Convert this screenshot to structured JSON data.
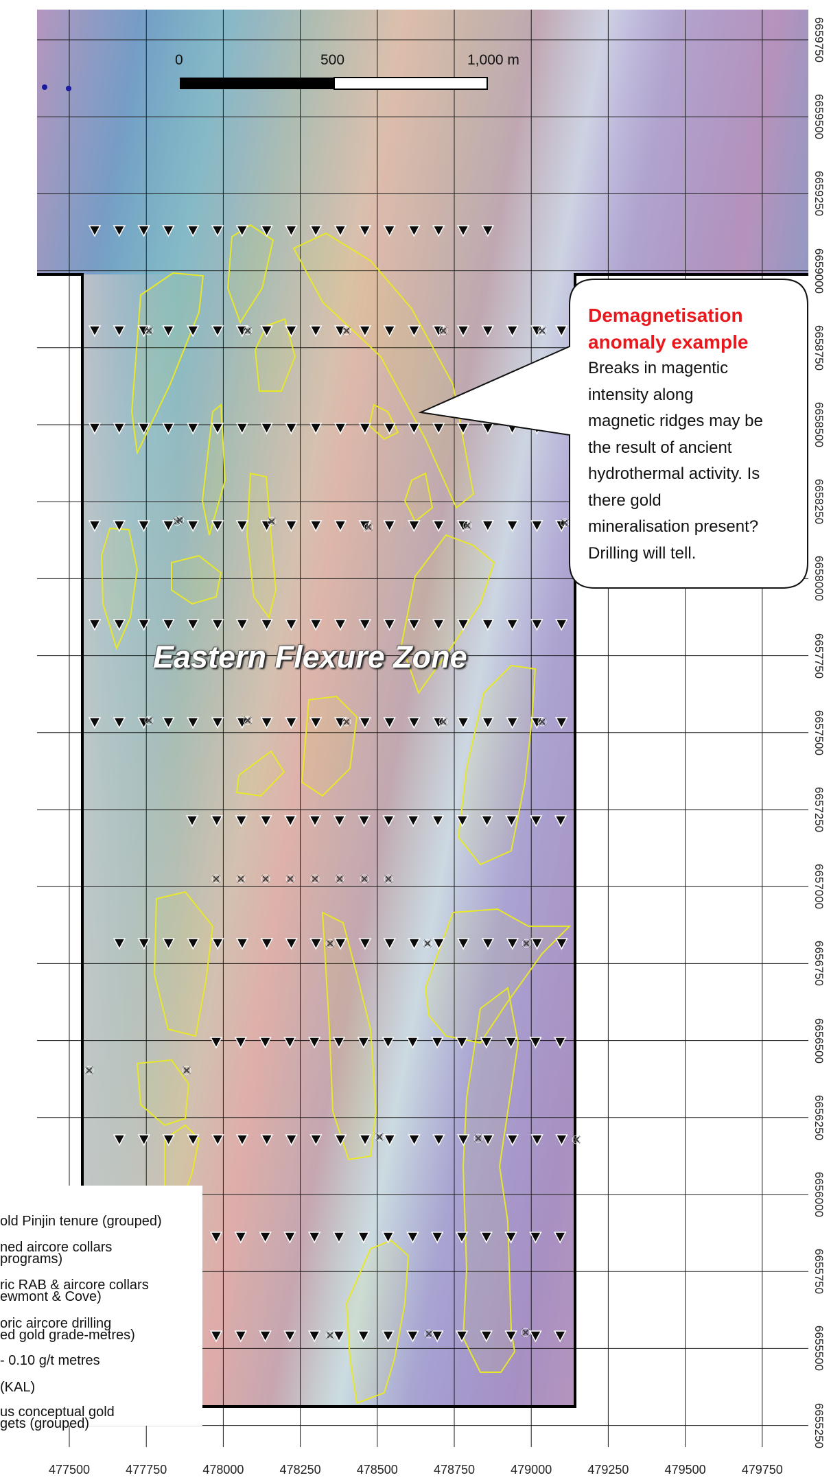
{
  "scale_bar": {
    "labels": [
      "0",
      "500",
      "1,000 m"
    ]
  },
  "callout": {
    "title_lines": [
      "Demagnetisation",
      "anomaly example"
    ],
    "body_lines": [
      "Breaks in magentic",
      "intensity along",
      "magnetic ridges may be",
      "the result of ancient",
      "hydrothermal activity. Is",
      "there gold",
      "mineralisation present?",
      "Drilling will tell."
    ]
  },
  "zone_label": "Eastern Flexure Zone",
  "legend": {
    "items": [
      {
        "lines": [
          "old Pinjin tenure (grouped)"
        ],
        "symbol": "tenure-boundary"
      },
      {
        "lines": [
          "ned aircore collars",
          "programs)"
        ],
        "symbol": "planned-collar-triangle"
      },
      {
        "lines": [
          "ric RAB & aircore collars",
          "ewmont & Cove)"
        ],
        "symbol": "historic-collar-cross"
      },
      {
        "lines": [
          "oric aircore drilling",
          "ed gold grade-metres)"
        ],
        "symbol": "grade-dot"
      },
      {
        "lines": [
          "- 0.10 g/t metres"
        ],
        "symbol": "grade-dot-small"
      },
      {
        "lines": [
          "(KAL)"
        ],
        "symbol": "tenure-line"
      },
      {
        "lines": [
          "us conceptual gold",
          "gets (grouped)"
        ],
        "symbol": "target-polygon"
      }
    ]
  },
  "axes": {
    "northing": [
      "6659750",
      "6659500",
      "6659250",
      "6659000",
      "6658750",
      "6658500",
      "6658250",
      "6658000",
      "6657750",
      "6657500",
      "6657250",
      "6657000",
      "6656750",
      "6656500",
      "6656250",
      "6656000",
      "6655750",
      "6655500",
      "6655250"
    ],
    "easting": [
      "477500",
      "477750",
      "478000",
      "478250",
      "478500",
      "478750",
      "479000",
      "479250",
      "479500",
      "479750"
    ]
  },
  "colors": {
    "callout_title": "#e8181c",
    "target_outline": "#e8e82a",
    "tenure_outline": "#000000",
    "grid_line": "#1a1a1a"
  }
}
